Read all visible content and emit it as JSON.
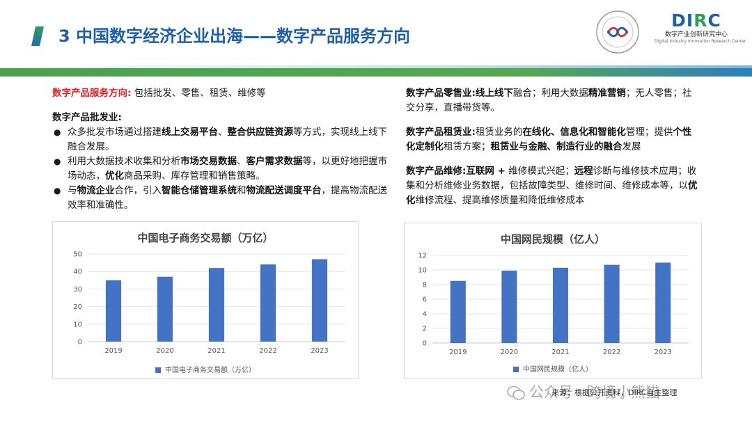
{
  "header": {
    "title": "3 中国数字经济企业出海——数字产品服务方向",
    "logo_dirc": {
      "word_main": "DI",
      "word_accent": "R",
      "word_end": "C",
      "cn": "数字产业创新研究中心",
      "en": "Digital Industry Innovation Research Center"
    },
    "seal_text": "数字产业创新研究中心"
  },
  "left": {
    "direction_label": "数字产品服务方向:",
    "direction_text": "包括批发、零售、租赁、维修等",
    "wholesale_head": "数字产品批发业:",
    "bullets": [
      {
        "pre": "众多批发市场通过搭建",
        "b1": "线上交易平台",
        "mid": "、",
        "b2": "整合供应链资源",
        "post": "等方式，实现线上线下融合发展。"
      },
      {
        "pre": "利用大数据技术收集和分析",
        "b1": "市场交易数据",
        "mid": "、",
        "b2": "客户需求数据",
        "post": "等，以更好地把握市场动态，",
        "b3": "优化",
        "post2": "商品采购、库存管理和销售策略。"
      },
      {
        "pre": "与",
        "b1": "物流企业",
        "mid": "合作，引入",
        "b2": "智能仓储管理系统",
        "post": "和",
        "b3": "物流配送调度平台",
        "post2": "，提高物流配送效率和准确性。"
      }
    ]
  },
  "right": {
    "retail": {
      "head": "数字产品零售业:",
      "b1": "线上线下",
      "t1": "融合；利用大数据",
      "b2": "精准营销",
      "t2": "；无人零售；社交分享，直播带货等。"
    },
    "rental": {
      "head": "数字产品租赁业:",
      "t1": "租赁业务的",
      "b1": "在线化、信息化和智能化",
      "t2": "管理；提供",
      "b2": "个性化定制化",
      "t3": "租赁方案；",
      "b3": "租赁业与金融、制造行业的融合",
      "t4": "发展"
    },
    "repair": {
      "head": "数字产品维修:",
      "b1": "互联网 +",
      "t1": " 维修模式兴起；",
      "b2": "远程",
      "t2": "诊断与维修技术应用；收集和分析维修业务数据，包括故障类型、维修时间、维修成本等，以",
      "b3": "优化",
      "t3": "维修流程、提高维修质量和降低维修成本"
    }
  },
  "chart_data": [
    {
      "type": "bar",
      "title": "中国电子商务交易额（万亿）",
      "categories": [
        "2019",
        "2020",
        "2021",
        "2022",
        "2023"
      ],
      "series": [
        {
          "name": "中国电子商务交易额（万亿）",
          "values": [
            35,
            37,
            42,
            44,
            47
          ]
        }
      ],
      "ylim": [
        0,
        50
      ],
      "yticks": [
        "0",
        "10",
        "20",
        "30",
        "40",
        "50"
      ],
      "grid": true,
      "legend": "bottom",
      "color": "#4472c4"
    },
    {
      "type": "bar",
      "title": "中国网民规模（亿人）",
      "categories": [
        "2019",
        "2020",
        "2021",
        "2022",
        "2023"
      ],
      "series": [
        {
          "name": "中国网民规模（亿人）",
          "values": [
            8.5,
            9.9,
            10.3,
            10.7,
            11.0
          ]
        }
      ],
      "ylim": [
        0,
        12
      ],
      "yticks": [
        "0",
        "2",
        "4",
        "6",
        "8",
        "10",
        "12"
      ],
      "grid": true,
      "legend": "bottom",
      "color": "#4472c4"
    }
  ],
  "footer": {
    "source": "来源：根据公开资料，DIRC自主整理",
    "watermark": "公众号 · 跨境小熊猫"
  }
}
